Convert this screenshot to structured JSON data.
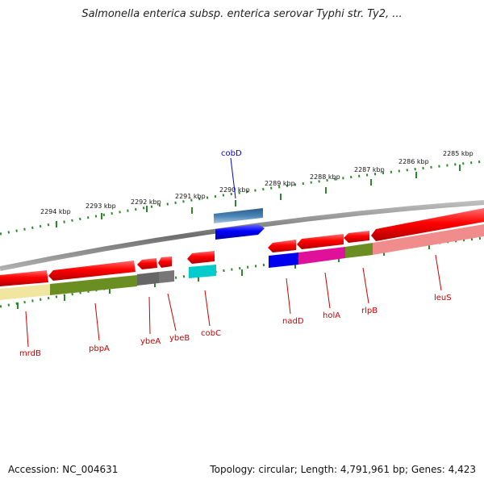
{
  "title": "Salmonella enterica subsp. enterica serovar Typhi str. Ty2, ...",
  "accession": "Accession: NC_004631",
  "topology": "Topology: circular; Length: 4,791,961 bp; Genes: 4,423",
  "scale_labels": [
    "2294 kbp",
    "2293 kbp",
    "2292 kbp",
    "2291 kbp",
    "2290 kbp",
    "2289 kbp",
    "2288 kbp",
    "2287 kbp",
    "2286 kbp",
    "2285 kbp"
  ],
  "gene_labels": [
    {
      "name": "cobD",
      "color": "#0000cc"
    },
    {
      "name": "mrdB",
      "color": "#cc0000"
    },
    {
      "name": "pbpA",
      "color": "#cc0000"
    },
    {
      "name": "ybeA",
      "color": "#cc0000"
    },
    {
      "name": "ybeB",
      "color": "#cc0000"
    },
    {
      "name": "cobC",
      "color": "#cc0000"
    },
    {
      "name": "nadD",
      "color": "#cc0000"
    },
    {
      "name": "holA",
      "color": "#cc0000"
    },
    {
      "name": "rlpB",
      "color": "#cc0000"
    },
    {
      "name": "leuS",
      "color": "#cc0000"
    }
  ],
  "colors": {
    "forward_gene": "#0000ff",
    "reverse_gene": "#ff0000",
    "backbone": "#888888",
    "scale": "#2a8a2a"
  }
}
